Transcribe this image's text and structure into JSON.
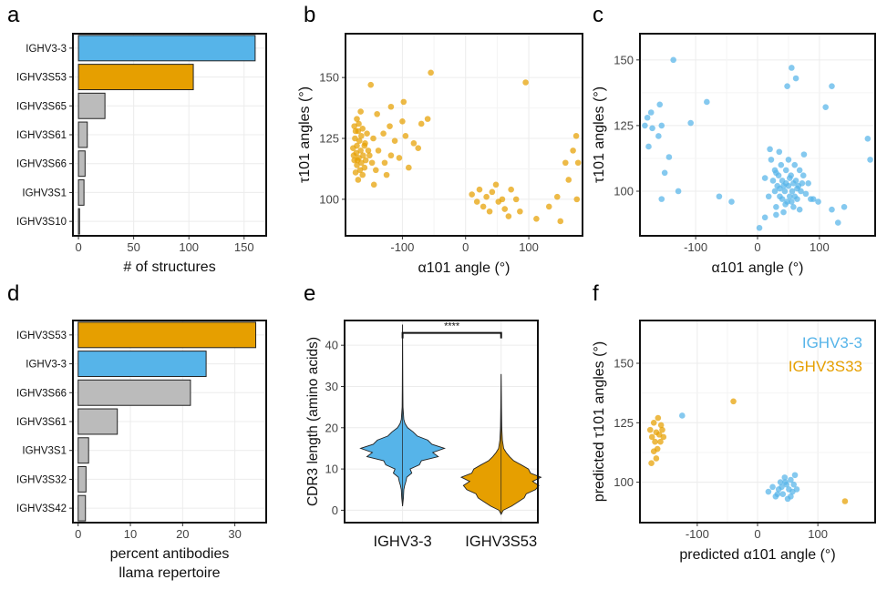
{
  "chart_data": [
    {
      "panel": "a",
      "type": "bar",
      "orientation": "horizontal",
      "categories": [
        "IGHV3-3",
        "IGHV3S53",
        "IGHV3S65",
        "IGHV3S61",
        "IGHV3S66",
        "IGHV3S1",
        "IGHV3S10"
      ],
      "values": [
        160,
        104,
        24,
        8,
        6,
        5,
        1
      ],
      "colors": [
        "#56B4E9",
        "#E69F00",
        "#BBBBBB",
        "#BBBBBB",
        "#BBBBBB",
        "#BBBBBB",
        "#BBBBBB"
      ],
      "xlabel": "# of structures",
      "xlim": [
        -5,
        170
      ],
      "xticks": [
        0,
        50,
        100,
        150
      ]
    },
    {
      "panel": "b",
      "type": "scatter",
      "xlabel": "α101 angle (°)",
      "ylabel": "τ101 angles (°)",
      "xlim": [
        -190,
        185
      ],
      "ylim": [
        85,
        168
      ],
      "xticks": [
        -100,
        0,
        100
      ],
      "yticks": [
        100,
        125,
        150
      ],
      "series": [
        {
          "name": "IGHV3S53",
          "color": "#E69F00",
          "points": [
            [
              -172,
              133
            ],
            [
              -176,
              130
            ],
            [
              -170,
              128
            ],
            [
              -165,
              126
            ],
            [
              -175,
              125
            ],
            [
              -168,
              124
            ],
            [
              -172,
              122
            ],
            [
              -160,
              122
            ],
            [
              -178,
              121
            ],
            [
              -166,
              120
            ],
            [
              -173,
              119
            ],
            [
              -162,
              118
            ],
            [
              -169,
              117
            ],
            [
              -176,
              116
            ],
            [
              -158,
              116
            ],
            [
              -165,
              115
            ],
            [
              -172,
              114
            ],
            [
              -160,
              113
            ],
            [
              -167,
              112
            ],
            [
              -174,
              111
            ],
            [
              -163,
              110
            ],
            [
              -170,
              108
            ],
            [
              -152,
              118
            ],
            [
              -148,
              115
            ],
            [
              -146,
              125
            ],
            [
              -145,
              106
            ],
            [
              -142,
              112
            ],
            [
              -138,
              120
            ],
            [
              -130,
              127
            ],
            [
              -128,
              115
            ],
            [
              -125,
              110
            ],
            [
              -120,
              130
            ],
            [
              -118,
              118
            ],
            [
              -112,
              124
            ],
            [
              -105,
              117
            ],
            [
              -100,
              132
            ],
            [
              -95,
              126
            ],
            [
              -90,
              113
            ],
            [
              -82,
              123
            ],
            [
              -75,
              121
            ],
            [
              -70,
              131
            ],
            [
              -60,
              133
            ],
            [
              -55,
              152
            ],
            [
              -98,
              140
            ],
            [
              -118,
              138
            ],
            [
              -140,
              135
            ],
            [
              -150,
              147
            ],
            [
              -166,
              136
            ],
            [
              -174,
              128
            ],
            [
              -169,
              131
            ],
            [
              -163,
              129
            ],
            [
              -156,
              127
            ],
            [
              -177,
              118
            ],
            [
              -171,
              116
            ],
            [
              -159,
              123
            ],
            [
              -154,
              120
            ],
            [
              10,
              102
            ],
            [
              18,
              99
            ],
            [
              22,
              104
            ],
            [
              28,
              97
            ],
            [
              33,
              101
            ],
            [
              38,
              95
            ],
            [
              42,
              103
            ],
            [
              48,
              106
            ],
            [
              52,
              99
            ],
            [
              58,
              100
            ],
            [
              62,
              96
            ],
            [
              68,
              93
            ],
            [
              72,
              104
            ],
            [
              80,
              100
            ],
            [
              86,
              95
            ],
            [
              95,
              148
            ],
            [
              112,
              92
            ],
            [
              132,
              97
            ],
            [
              145,
              101
            ],
            [
              150,
              91
            ],
            [
              158,
              115
            ],
            [
              163,
              108
            ],
            [
              170,
              120
            ],
            [
              175,
              126
            ],
            [
              178,
              115
            ],
            [
              176,
              100
            ]
          ]
        }
      ]
    },
    {
      "panel": "c",
      "type": "scatter",
      "xlabel": "α101 angle (°)",
      "ylabel": "τ101 angles (°)",
      "xlim": [
        -190,
        190
      ],
      "ylim": [
        83,
        160
      ],
      "xticks": [
        -100,
        0,
        100
      ],
      "yticks": [
        100,
        125,
        150
      ],
      "series": [
        {
          "name": "IGHV3-3",
          "color": "#56B4E9",
          "points": [
            [
              -178,
              128
            ],
            [
              -182,
              125
            ],
            [
              -172,
              130
            ],
            [
              -170,
              124
            ],
            [
              -176,
              117
            ],
            [
              -158,
              133
            ],
            [
              -160,
              121
            ],
            [
              -155,
              125
            ],
            [
              -150,
              107
            ],
            [
              -143,
              113
            ],
            [
              -136,
              150
            ],
            [
              -108,
              126
            ],
            [
              -82,
              134
            ],
            [
              -62,
              98
            ],
            [
              -42,
              96
            ],
            [
              -128,
              100
            ],
            [
              -155,
              97
            ],
            [
              12,
              105
            ],
            [
              18,
              98
            ],
            [
              22,
              112
            ],
            [
              28,
              100
            ],
            [
              28,
              108
            ],
            [
              30,
              94
            ],
            [
              32,
              102
            ],
            [
              34,
              106
            ],
            [
              36,
              98
            ],
            [
              38,
              110
            ],
            [
              40,
              104
            ],
            [
              42,
              92
            ],
            [
              44,
              100
            ],
            [
              46,
              108
            ],
            [
              48,
              96
            ],
            [
              50,
              112
            ],
            [
              50,
              102
            ],
            [
              52,
              98
            ],
            [
              54,
              106
            ],
            [
              56,
              100
            ],
            [
              58,
              94
            ],
            [
              60,
              110
            ],
            [
              62,
              104
            ],
            [
              64,
              97
            ],
            [
              66,
              102
            ],
            [
              68,
              108
            ],
            [
              70,
              100
            ],
            [
              74,
              106
            ],
            [
              78,
              99
            ],
            [
              82,
              103
            ],
            [
              86,
              97
            ],
            [
              55,
              147
            ],
            [
              62,
              143
            ],
            [
              48,
              140
            ],
            [
              20,
              116
            ],
            [
              35,
              115
            ],
            [
              75,
              114
            ],
            [
              3,
              86
            ],
            [
              12,
              90
            ],
            [
              30,
              91
            ],
            [
              68,
              93
            ],
            [
              90,
              97
            ],
            [
              98,
              96
            ],
            [
              110,
              132
            ],
            [
              120,
              93
            ],
            [
              130,
              88
            ],
            [
              140,
              94
            ],
            [
              178,
              120
            ],
            [
              182,
              112
            ],
            [
              120,
              140
            ],
            [
              42,
              102
            ],
            [
              46,
              103
            ],
            [
              52,
              105
            ],
            [
              58,
              103
            ],
            [
              40,
              97
            ],
            [
              45,
              95
            ],
            [
              55,
              96
            ],
            [
              60,
              98
            ],
            [
              25,
              104
            ],
            [
              30,
              107
            ],
            [
              64,
              101
            ],
            [
              72,
              103
            ],
            [
              36,
              101
            ]
          ]
        }
      ]
    },
    {
      "panel": "d",
      "type": "bar",
      "orientation": "horizontal",
      "categories": [
        "IGHV3S53",
        "IGHV3-3",
        "IGHV3S66",
        "IGHV3S61",
        "IGHV3S1",
        "IGHV3S32",
        "IGHV3S42"
      ],
      "values": [
        34,
        24.5,
        21.5,
        7.5,
        2,
        1.5,
        1.4
      ],
      "colors": [
        "#E69F00",
        "#56B4E9",
        "#BBBBBB",
        "#BBBBBB",
        "#BBBBBB",
        "#BBBBBB",
        "#BBBBBB"
      ],
      "xlabel": "percent antibodies",
      "xlabel2": "llama repertoire",
      "xlim": [
        -1,
        36
      ],
      "xticks": [
        0,
        10,
        20,
        30
      ]
    },
    {
      "panel": "e",
      "type": "violin",
      "categories": [
        "IGHV3-3",
        "IGHV3S53"
      ],
      "colors": [
        "#56B4E9",
        "#E69F00"
      ],
      "ylabel": "CDR3 length (amino acids)",
      "ylim": [
        -3,
        46
      ],
      "yticks": [
        0,
        10,
        20,
        30,
        40
      ],
      "significance": "****",
      "ranges": [
        [
          1,
          45
        ],
        [
          -1,
          33
        ]
      ],
      "density": [
        [
          [
            1,
            0
          ],
          [
            3,
            0.02
          ],
          [
            5,
            0.03
          ],
          [
            6,
            0.05
          ],
          [
            7,
            0.08
          ],
          [
            8,
            0.1
          ],
          [
            9,
            0.22
          ],
          [
            10,
            0.18
          ],
          [
            11,
            0.4
          ],
          [
            12,
            0.45
          ],
          [
            13,
            0.85
          ],
          [
            14,
            0.72
          ],
          [
            15,
            1.0
          ],
          [
            16,
            0.7
          ],
          [
            17,
            0.6
          ],
          [
            18,
            0.35
          ],
          [
            19,
            0.25
          ],
          [
            20,
            0.12
          ],
          [
            21,
            0.06
          ],
          [
            22,
            0.03
          ],
          [
            25,
            0.01
          ],
          [
            30,
            0.006
          ],
          [
            45,
            0
          ]
        ],
        [
          [
            -1,
            0
          ],
          [
            0,
            0.05
          ],
          [
            1,
            0.25
          ],
          [
            2,
            0.4
          ],
          [
            3,
            0.55
          ],
          [
            4,
            0.6
          ],
          [
            5,
            0.82
          ],
          [
            6,
            0.9
          ],
          [
            7,
            0.75
          ],
          [
            8,
            0.95
          ],
          [
            9,
            0.7
          ],
          [
            10,
            0.65
          ],
          [
            11,
            0.48
          ],
          [
            12,
            0.3
          ],
          [
            13,
            0.2
          ],
          [
            14,
            0.12
          ],
          [
            15,
            0.06
          ],
          [
            17,
            0.03
          ],
          [
            20,
            0.015
          ],
          [
            25,
            0.008
          ],
          [
            33,
            0
          ]
        ]
      ]
    },
    {
      "panel": "f",
      "type": "scatter",
      "xlabel": "predicted α101 angle (°)",
      "ylabel": "predicted τ101 angles (°)",
      "xlim": [
        -195,
        195
      ],
      "ylim": [
        83,
        168
      ],
      "xticks": [
        -100,
        0,
        100
      ],
      "yticks": [
        100,
        125,
        150
      ],
      "legend_position": "top-right",
      "series": [
        {
          "name": "IGHV3-3",
          "color": "#56B4E9",
          "points": [
            [
              -125,
              128
            ],
            [
              18,
              96
            ],
            [
              25,
              98
            ],
            [
              30,
              94
            ],
            [
              35,
              97
            ],
            [
              38,
              100
            ],
            [
              42,
              95
            ],
            [
              45,
              102
            ],
            [
              48,
              99
            ],
            [
              50,
              93
            ],
            [
              52,
              97
            ],
            [
              55,
              101
            ],
            [
              58,
              96
            ],
            [
              60,
              99
            ],
            [
              62,
              103
            ],
            [
              65,
              97
            ],
            [
              40,
              98
            ],
            [
              46,
              100
            ],
            [
              55,
              94
            ],
            [
              33,
              95
            ]
          ]
        },
        {
          "name": "IGHV3S33",
          "color": "#E69F00",
          "points": [
            [
              -178,
              122
            ],
            [
              -175,
              119
            ],
            [
              -172,
              125
            ],
            [
              -170,
              117
            ],
            [
              -168,
              121
            ],
            [
              -166,
              114
            ],
            [
              -165,
              127
            ],
            [
              -163,
              120
            ],
            [
              -161,
              117
            ],
            [
              -160,
              124
            ],
            [
              -158,
              122
            ],
            [
              -156,
              119
            ],
            [
              -172,
              113
            ],
            [
              -176,
              108
            ],
            [
              -168,
              110
            ],
            [
              -40,
              134
            ],
            [
              145,
              92
            ]
          ]
        }
      ]
    }
  ],
  "panel_labels": [
    "a",
    "b",
    "c",
    "d",
    "e",
    "f"
  ]
}
